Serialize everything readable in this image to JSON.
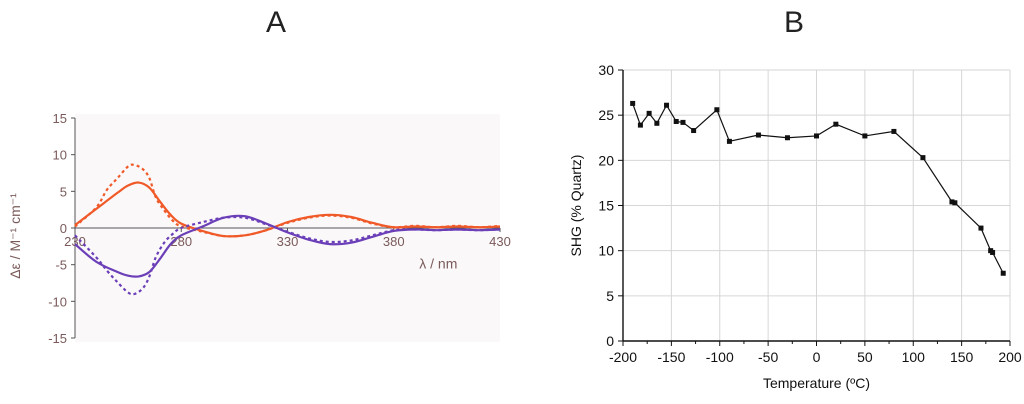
{
  "panels": {
    "a": "A",
    "b": "B"
  },
  "chart_data": [
    {
      "type": "line",
      "panel": "A",
      "ylabel": "Δε / M⁻¹ cm⁻¹",
      "xlabel": "λ / nm",
      "xlim": [
        230,
        430
      ],
      "ylim": [
        -15,
        15
      ],
      "xticks": [
        230,
        280,
        330,
        380,
        430
      ],
      "yticks": [
        15,
        10,
        5,
        0,
        -5,
        -10,
        -15
      ],
      "grid": false,
      "background": "#fbf8fa",
      "series": [
        {
          "color": "#f05a28",
          "style": "solid",
          "x": [
            230,
            240,
            250,
            255,
            260,
            265,
            270,
            275,
            280,
            290,
            300,
            310,
            320,
            330,
            340,
            350,
            360,
            370,
            380,
            390,
            400,
            410,
            420,
            430
          ],
          "y": [
            0.4,
            2.6,
            4.8,
            5.8,
            6.2,
            5.5,
            3.6,
            1.8,
            0.6,
            -0.4,
            -1.1,
            -1.0,
            -0.3,
            0.8,
            1.5,
            1.8,
            1.5,
            0.7,
            0.1,
            0.2,
            0.1,
            0.2,
            0.1,
            0.2
          ]
        },
        {
          "color": "#f05a28",
          "style": "dotted",
          "x": [
            230,
            240,
            245,
            250,
            255,
            258,
            262,
            265,
            268,
            272,
            276,
            280,
            290,
            300,
            310,
            320,
            330,
            340,
            350,
            360,
            370,
            380,
            390,
            400,
            410,
            420,
            430
          ],
          "y": [
            0.2,
            2.8,
            5.2,
            6.8,
            8.4,
            8.6,
            8.0,
            6.8,
            4.2,
            2.4,
            1.0,
            0.2,
            -0.5,
            -1.1,
            -1.0,
            -0.3,
            0.7,
            1.4,
            1.7,
            1.4,
            0.6,
            0.1,
            0.3,
            0.1,
            0.3,
            0.1,
            0.3
          ]
        },
        {
          "color": "#6b3fb8",
          "style": "solid",
          "x": [
            230,
            240,
            250,
            255,
            260,
            265,
            270,
            275,
            280,
            290,
            300,
            310,
            320,
            330,
            340,
            350,
            360,
            370,
            380,
            390,
            400,
            410,
            420,
            430
          ],
          "y": [
            -2.2,
            -4.6,
            -6.0,
            -6.5,
            -6.6,
            -6.0,
            -4.2,
            -2.2,
            -1.0,
            0.2,
            1.4,
            1.6,
            0.6,
            -0.6,
            -1.6,
            -2.2,
            -2.0,
            -1.2,
            -0.4,
            -0.2,
            -0.3,
            -0.2,
            -0.3,
            -0.2
          ]
        },
        {
          "color": "#6b3fb8",
          "style": "dotted",
          "x": [
            230,
            240,
            245,
            250,
            255,
            258,
            262,
            265,
            268,
            272,
            276,
            280,
            290,
            300,
            310,
            320,
            330,
            340,
            350,
            360,
            370,
            380,
            390,
            400,
            410,
            420,
            430
          ],
          "y": [
            -1.0,
            -4.0,
            -5.8,
            -7.4,
            -8.8,
            -9.0,
            -8.2,
            -6.6,
            -4.0,
            -2.0,
            -0.8,
            0.0,
            0.8,
            1.4,
            1.4,
            0.5,
            -0.5,
            -1.4,
            -1.9,
            -1.7,
            -1.0,
            -0.3,
            -0.2,
            -0.3,
            -0.2,
            -0.3,
            -0.2
          ]
        }
      ]
    },
    {
      "type": "line",
      "panel": "B",
      "ylabel": "SHG (% Quartz)",
      "xlabel": "Temperature (ºC)",
      "xlim": [
        -200,
        200
      ],
      "ylim": [
        0,
        30
      ],
      "xticks": [
        -200,
        -150,
        -100,
        -50,
        0,
        50,
        100,
        150,
        200
      ],
      "yticks": [
        0,
        5,
        10,
        15,
        20,
        25,
        30
      ],
      "grid": true,
      "series": [
        {
          "color": "#111111",
          "marker": "square",
          "x": [
            -190,
            -182,
            -173,
            -165,
            -155,
            -145,
            -138,
            -127,
            -103,
            -90,
            -60,
            -30,
            0,
            20,
            50,
            80,
            110,
            140,
            143,
            170,
            180,
            182,
            193
          ],
          "y": [
            26.3,
            23.9,
            25.2,
            24.1,
            26.1,
            24.3,
            24.2,
            23.3,
            25.6,
            22.1,
            22.8,
            22.5,
            22.7,
            24.0,
            22.7,
            23.2,
            20.3,
            15.4,
            15.3,
            12.5,
            10.0,
            9.8,
            7.5
          ]
        }
      ]
    }
  ]
}
